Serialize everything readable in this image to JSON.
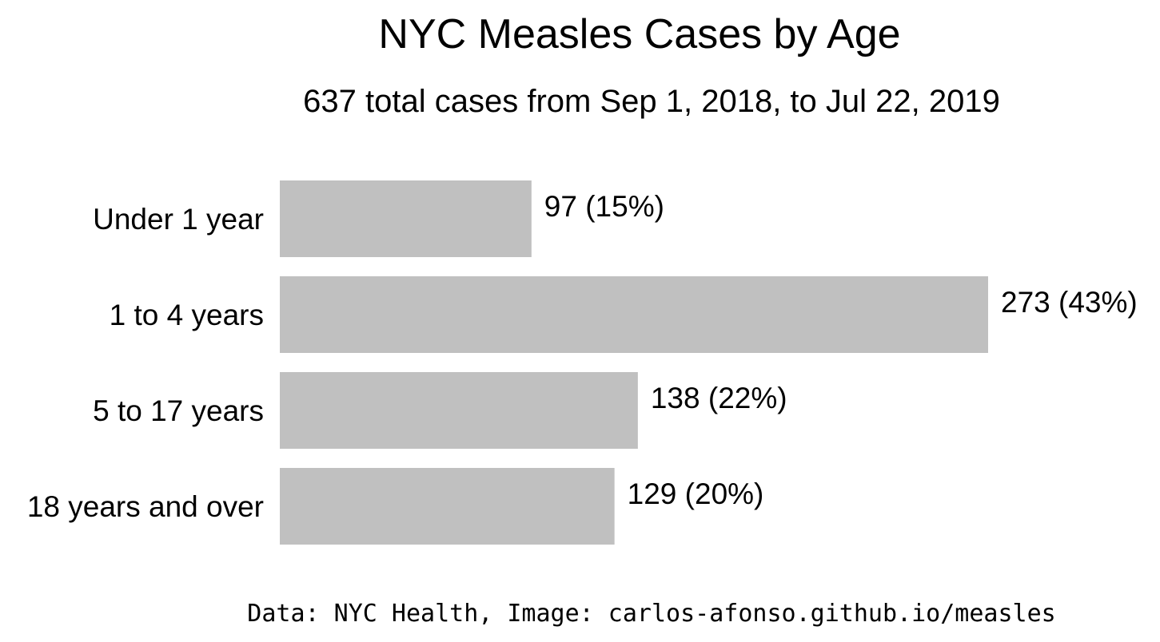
{
  "chart_data": {
    "type": "bar",
    "orientation": "horizontal",
    "title": "NYC Measles Cases by Age",
    "subtitle": "637 total cases from Sep 1, 2018, to Jul 22, 2019",
    "categories": [
      "Under 1 year",
      "1 to 4 years",
      "5 to 17 years",
      "18 years and over"
    ],
    "values": [
      97,
      273,
      138,
      129
    ],
    "data_labels": [
      "97 (15%)",
      "273 (43%)",
      "138 (22%)",
      "129 (20%)"
    ],
    "xlim": [
      0,
      273
    ],
    "grid": false,
    "bar_color": "#c0c0c0",
    "source": "Data: NYC Health, Image: carlos-afonso.github.io/measles"
  }
}
